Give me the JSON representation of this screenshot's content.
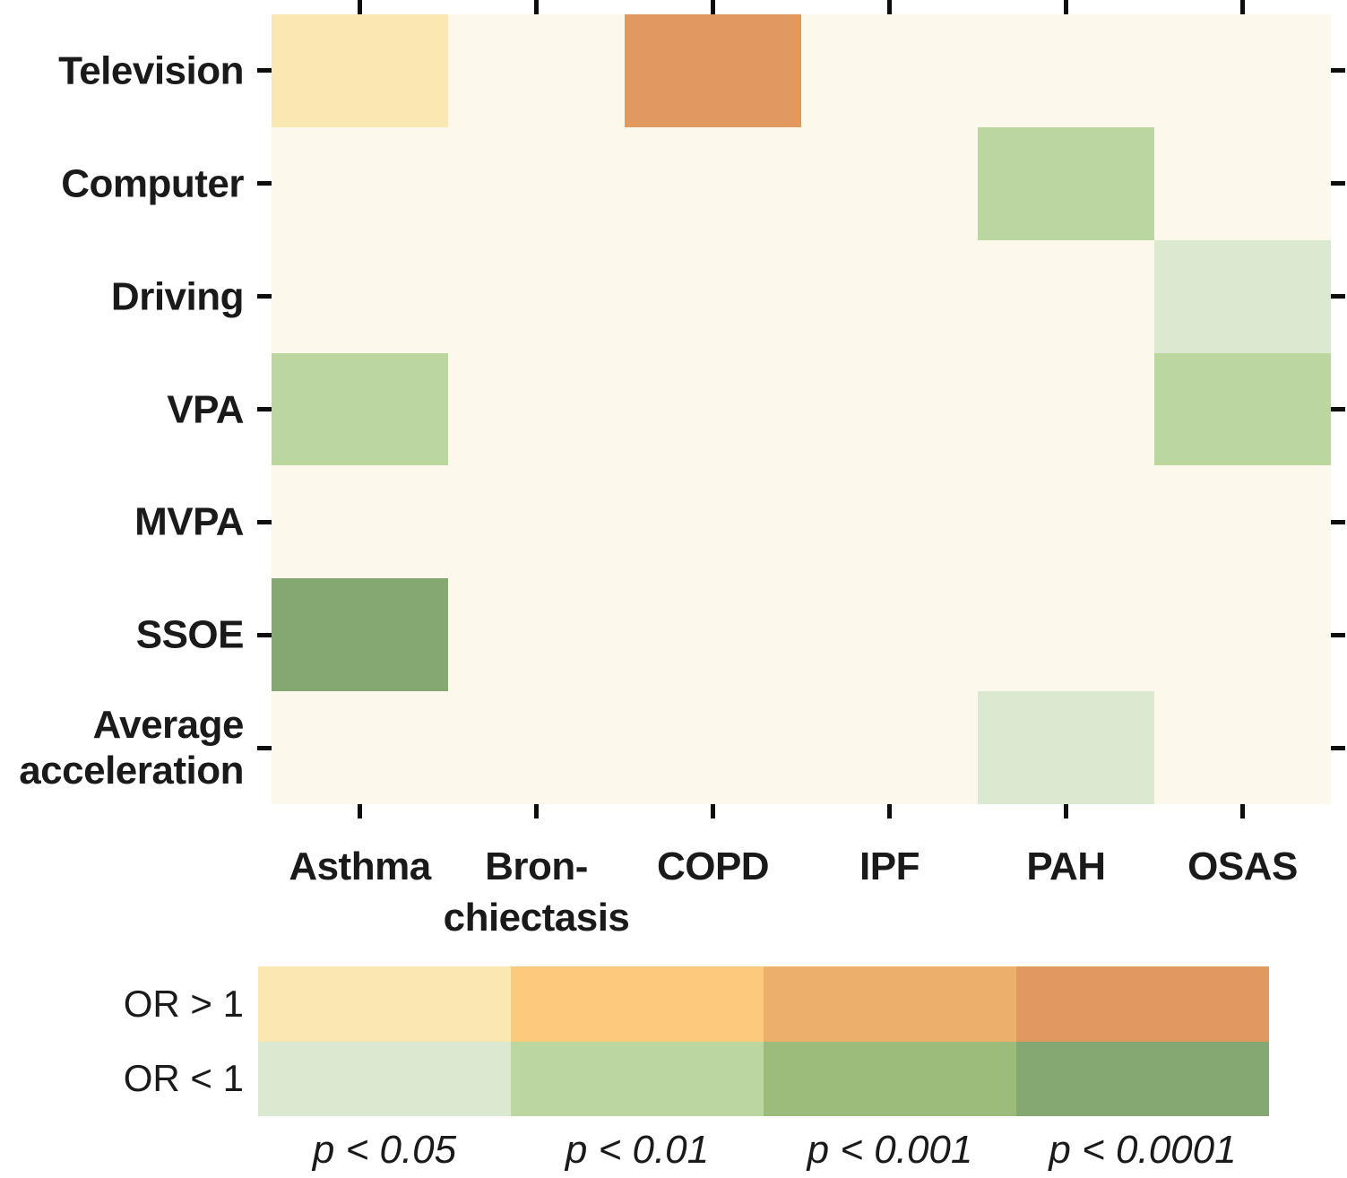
{
  "chart_data": {
    "type": "heatmap",
    "title": "",
    "xlabel": "",
    "ylabel": "",
    "grid": false,
    "plot_background": "#fdf8ec",
    "rows": [
      "Television",
      "Computer",
      "Driving",
      "VPA",
      "MVPA",
      "SSOE",
      "Average\nacceleration"
    ],
    "columns": [
      "Asthma",
      "Bron-\nchiectasis",
      "COPD",
      "IPF",
      "PAH",
      "OSAS"
    ],
    "cells": [
      {
        "row": "Television",
        "column": "Asthma",
        "or_direction": "OR > 1",
        "significance": "p < 0.05",
        "color": "#fae7b2"
      },
      {
        "row": "Television",
        "column": "COPD",
        "or_direction": "OR > 1",
        "significance": "p < 0.0001",
        "color": "#e0995e"
      },
      {
        "row": "Computer",
        "column": "PAH",
        "or_direction": "OR < 1",
        "significance": "p < 0.01",
        "color": "#bbd69e"
      },
      {
        "row": "Driving",
        "column": "OSAS",
        "or_direction": "OR < 1",
        "significance": "p < 0.05",
        "color": "#dbe9d0"
      },
      {
        "row": "VPA",
        "column": "Asthma",
        "or_direction": "OR < 1",
        "significance": "p < 0.01",
        "color": "#bbd69e"
      },
      {
        "row": "VPA",
        "column": "OSAS",
        "or_direction": "OR < 1",
        "significance": "p < 0.01",
        "color": "#bbd69e"
      },
      {
        "row": "SSOE",
        "column": "Asthma",
        "or_direction": "OR < 1",
        "significance": "p < 0.0001",
        "color": "#85a872"
      },
      {
        "row": "Average acceleration",
        "column": "PAH",
        "or_direction": "OR < 1",
        "significance": "p < 0.05",
        "color": "#dbe9d0"
      }
    ],
    "legend": {
      "position": "bottom",
      "rows": [
        {
          "label": "OR > 1",
          "colors": [
            "#fae7b2",
            "#fbca7d",
            "#edb06c",
            "#e0995e"
          ]
        },
        {
          "label": "OR < 1",
          "colors": [
            "#dbe9d0",
            "#bbd69e",
            "#9cbc7b",
            "#85a872"
          ]
        }
      ],
      "p_labels": [
        "p < 0.05",
        "p < 0.01",
        "p < 0.001",
        "p < 0.0001"
      ]
    }
  }
}
